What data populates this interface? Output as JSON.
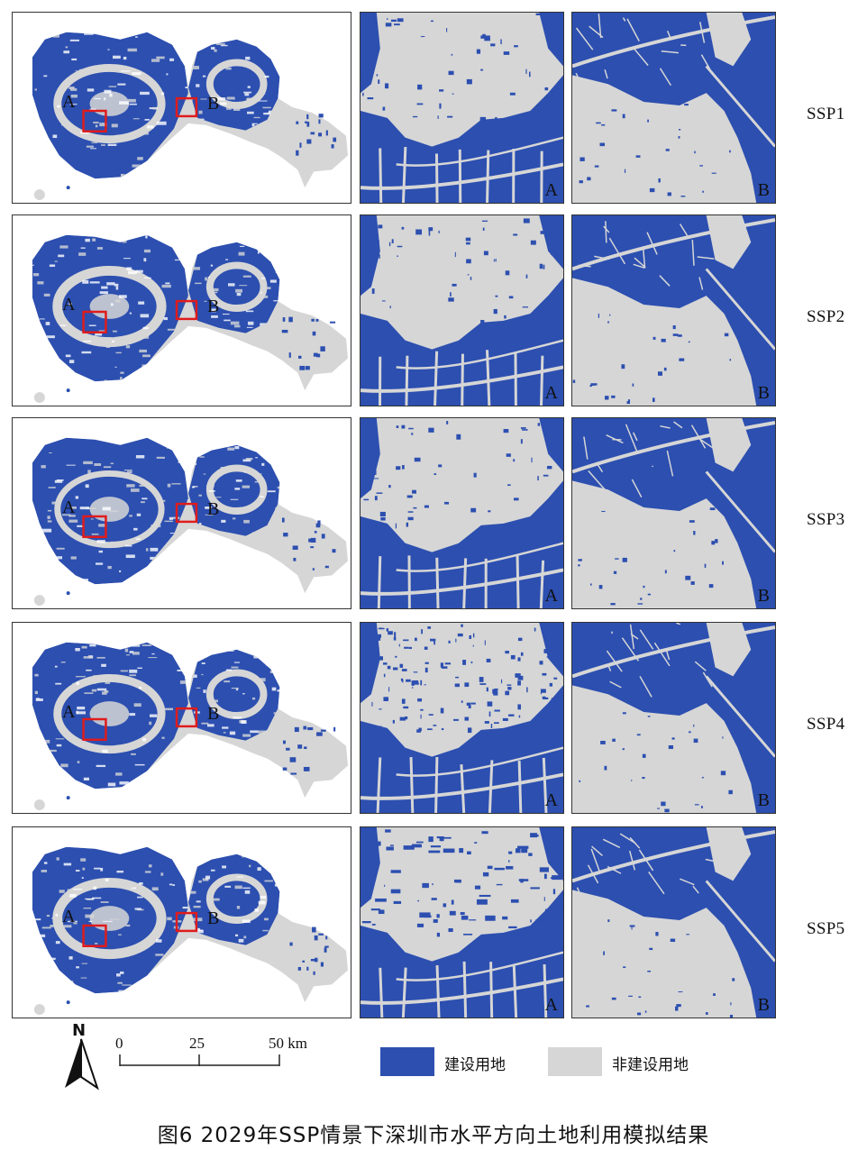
{
  "rows": [
    {
      "scenario": "SSP1",
      "marker_a": "A",
      "marker_b": "B",
      "zoom_a_label": "A",
      "zoom_b_label": "B"
    },
    {
      "scenario": "SSP2",
      "marker_a": "A",
      "marker_b": "B",
      "zoom_a_label": "A",
      "zoom_b_label": "B"
    },
    {
      "scenario": "SSP3",
      "marker_a": "A",
      "marker_b": "B",
      "zoom_a_label": "A",
      "zoom_b_label": "B"
    },
    {
      "scenario": "SSP4",
      "marker_a": "A",
      "marker_b": "B",
      "zoom_a_label": "A",
      "zoom_b_label": "B"
    },
    {
      "scenario": "SSP5",
      "marker_a": "A",
      "marker_b": "B",
      "zoom_a_label": "A",
      "zoom_b_label": "B"
    }
  ],
  "north_arrow": {
    "label": "N",
    "icon": "north-arrow-icon"
  },
  "scale_bar": {
    "ticks": [
      "0",
      "25",
      "50 km"
    ]
  },
  "legend": [
    {
      "label": "建设用地",
      "color": "#2c4fb0"
    },
    {
      "label": "非建设用地",
      "color": "#d6d6d6"
    }
  ],
  "caption": "图6   2029年SSP情景下深圳市水平方向土地利用模拟结果",
  "colors": {
    "built": "#2c4fb0",
    "nonbuilt": "#d6d6d6",
    "marker": "#e01b1b"
  }
}
